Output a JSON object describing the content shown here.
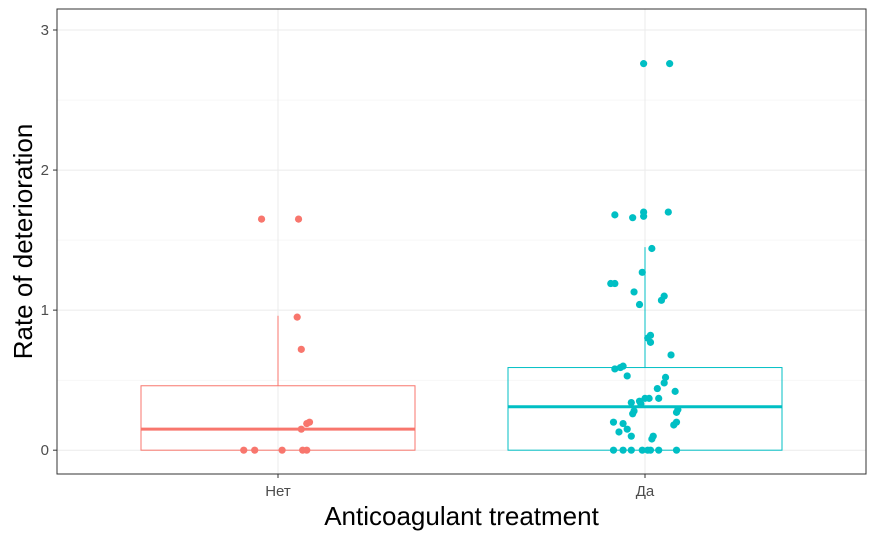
{
  "chart_data": {
    "type": "boxplot",
    "xlabel": "Anticoagulant treatment",
    "ylabel": "Rate of deterioration",
    "ylim": [
      -0.17,
      3.15
    ],
    "yticks": [
      0,
      1,
      2,
      3
    ],
    "grid": true,
    "categories": [
      "Нет",
      "Да"
    ],
    "groups": [
      {
        "category": "Нет",
        "color": "#F8766D",
        "box": {
          "min": 0,
          "q1": 0,
          "median": 0.15,
          "q3": 0.46,
          "max": 0.96
        },
        "points": [
          {
            "x": -0.12,
            "y": 1.65
          },
          {
            "x": 0.15,
            "y": 1.65
          },
          {
            "x": 0.14,
            "y": 0.95
          },
          {
            "x": 0.17,
            "y": 0.72
          },
          {
            "x": 0.17,
            "y": 0.15
          },
          {
            "x": 0.21,
            "y": 0.19
          },
          {
            "x": 0.23,
            "y": 0.2
          },
          {
            "x": -0.25,
            "y": 0.0
          },
          {
            "x": -0.17,
            "y": 0.0
          },
          {
            "x": 0.03,
            "y": 0.0
          },
          {
            "x": 0.18,
            "y": 0.0
          },
          {
            "x": 0.21,
            "y": 0.0
          }
        ]
      },
      {
        "category": "Да",
        "color": "#00BFC4",
        "box": {
          "min": 0,
          "q1": 0,
          "median": 0.31,
          "q3": 0.59,
          "max": 1.45
        },
        "points": [
          {
            "x": -0.01,
            "y": 2.76
          },
          {
            "x": 0.18,
            "y": 2.76
          },
          {
            "x": -0.22,
            "y": 1.68
          },
          {
            "x": -0.09,
            "y": 1.66
          },
          {
            "x": -0.01,
            "y": 1.67
          },
          {
            "x": -0.01,
            "y": 1.7
          },
          {
            "x": 0.17,
            "y": 1.7
          },
          {
            "x": 0.05,
            "y": 1.44
          },
          {
            "x": -0.02,
            "y": 1.27
          },
          {
            "x": -0.25,
            "y": 1.19
          },
          {
            "x": -0.22,
            "y": 1.19
          },
          {
            "x": -0.08,
            "y": 1.13
          },
          {
            "x": 0.12,
            "y": 1.07
          },
          {
            "x": 0.14,
            "y": 1.1
          },
          {
            "x": -0.04,
            "y": 1.04
          },
          {
            "x": 0.04,
            "y": 0.82
          },
          {
            "x": 0.02,
            "y": 0.8
          },
          {
            "x": 0.04,
            "y": 0.77
          },
          {
            "x": 0.19,
            "y": 0.68
          },
          {
            "x": -0.22,
            "y": 0.58
          },
          {
            "x": -0.18,
            "y": 0.59
          },
          {
            "x": -0.16,
            "y": 0.6
          },
          {
            "x": -0.13,
            "y": 0.53
          },
          {
            "x": 0.15,
            "y": 0.52
          },
          {
            "x": 0.14,
            "y": 0.48
          },
          {
            "x": 0.09,
            "y": 0.44
          },
          {
            "x": 0.22,
            "y": 0.42
          },
          {
            "x": 0.03,
            "y": 0.37
          },
          {
            "x": -0.04,
            "y": 0.35
          },
          {
            "x": 0.1,
            "y": 0.37
          },
          {
            "x": -0.1,
            "y": 0.34
          },
          {
            "x": -0.03,
            "y": 0.33
          },
          {
            "x": 0.0,
            "y": 0.37
          },
          {
            "x": -0.09,
            "y": 0.26
          },
          {
            "x": -0.08,
            "y": 0.28
          },
          {
            "x": 0.23,
            "y": 0.27
          },
          {
            "x": 0.24,
            "y": 0.29
          },
          {
            "x": -0.23,
            "y": 0.2
          },
          {
            "x": -0.19,
            "y": 0.13
          },
          {
            "x": -0.16,
            "y": 0.19
          },
          {
            "x": -0.13,
            "y": 0.15
          },
          {
            "x": -0.1,
            "y": 0.1
          },
          {
            "x": 0.21,
            "y": 0.18
          },
          {
            "x": 0.23,
            "y": 0.2
          },
          {
            "x": 0.06,
            "y": 0.1
          },
          {
            "x": 0.05,
            "y": 0.08
          },
          {
            "x": -0.23,
            "y": 0.0
          },
          {
            "x": -0.16,
            "y": 0.0
          },
          {
            "x": -0.1,
            "y": 0.0
          },
          {
            "x": -0.02,
            "y": 0.0
          },
          {
            "x": 0.02,
            "y": 0.0
          },
          {
            "x": 0.04,
            "y": 0.0
          },
          {
            "x": 0.1,
            "y": 0.0
          },
          {
            "x": 0.23,
            "y": 0.0
          }
        ]
      }
    ]
  }
}
